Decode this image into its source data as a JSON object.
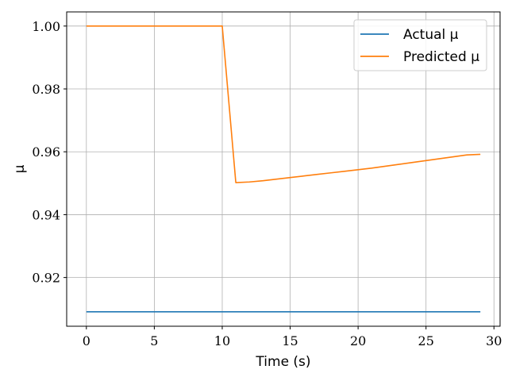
{
  "chart_data": {
    "type": "line",
    "xlabel": "Time (s)",
    "ylabel": "μ",
    "xlim": [
      -1.45,
      30.45
    ],
    "ylim": [
      0.9045,
      1.0045
    ],
    "xticks": [
      0,
      5,
      10,
      15,
      20,
      25,
      30
    ],
    "xtick_labels": [
      "0",
      "5",
      "10",
      "15",
      "20",
      "25",
      "30"
    ],
    "yticks": [
      0.92,
      0.94,
      0.96,
      0.98,
      1.0
    ],
    "ytick_labels": [
      "0.92",
      "0.94",
      "0.96",
      "0.98",
      "1.00"
    ],
    "grid": true,
    "legend_position": "top-right",
    "series": [
      {
        "name": "Actual μ",
        "color": "#1f77b4",
        "x": [
          0,
          29
        ],
        "y": [
          0.9091,
          0.9091
        ]
      },
      {
        "name": "Predicted μ",
        "color": "#ff7f0e",
        "x": [
          0,
          10,
          11,
          12,
          13,
          14,
          15,
          16,
          17,
          18,
          19,
          20,
          21,
          22,
          23,
          24,
          25,
          26,
          27,
          28,
          29
        ],
        "y": [
          1.0,
          1.0,
          0.9502,
          0.9504,
          0.9508,
          0.9513,
          0.9518,
          0.9523,
          0.9528,
          0.9533,
          0.9538,
          0.9543,
          0.9548,
          0.9554,
          0.956,
          0.9566,
          0.9572,
          0.9578,
          0.9584,
          0.959,
          0.9592
        ]
      }
    ]
  }
}
